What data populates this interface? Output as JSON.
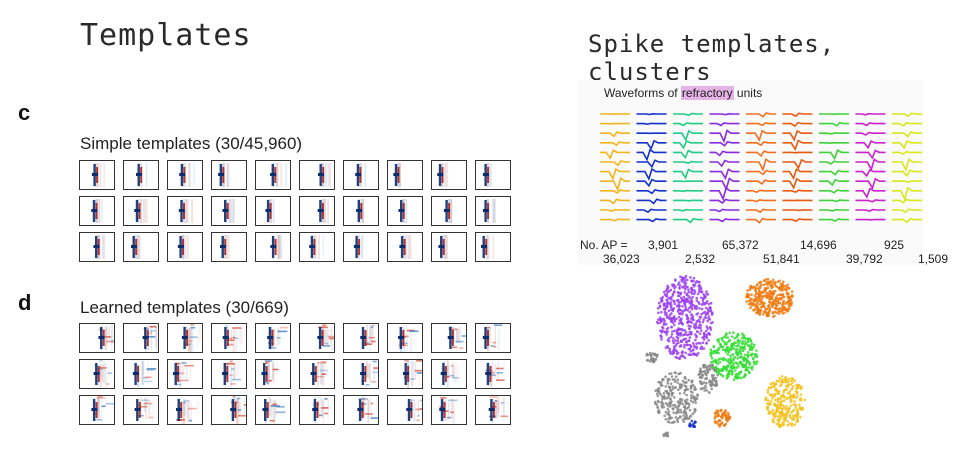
{
  "headings": {
    "left": "Templates",
    "right": "Spike templates, clusters"
  },
  "panels": {
    "c": {
      "letter": "c",
      "title": "Simple templates (30/45,960)"
    },
    "d": {
      "letter": "d",
      "title": "Learned templates (30/669)"
    }
  },
  "waveforms": {
    "title_prefix": "Waveforms of ",
    "title_highlight": "refractory",
    "title_suffix": " units",
    "count_label": "No. AP =",
    "unit_colors": [
      "#f2b51c",
      "#1531c9",
      "#22cc88",
      "#8a2be2",
      "#f07020",
      "#e85a10",
      "#3fd23a",
      "#cc22cc",
      "#d8e81a"
    ],
    "counts_top": [
      "3,901",
      "65,372",
      "14,696",
      "925"
    ],
    "counts_bottom": [
      "36,023",
      "2,532",
      "51,841",
      "39,792",
      "1,509"
    ]
  },
  "clusters": {
    "colors": {
      "purple": "#9b3ff0",
      "orange": "#f07a10",
      "green": "#33dd33",
      "yellow": "#f2c21c",
      "gray": "#888888",
      "blue": "#1531c9"
    }
  }
}
